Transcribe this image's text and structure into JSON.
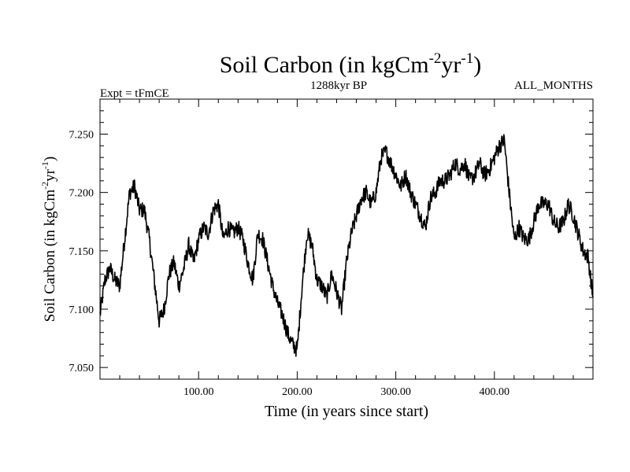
{
  "chart_data": {
    "type": "line",
    "title_main": "Soil Carbon (in kgCm",
    "title_exp1": "-2",
    "title_mid": "yr",
    "title_exp2": "-1",
    "title_end": ")",
    "subtitle_left": "Expt = tFmCE",
    "subtitle_center": "1288kyr BP",
    "subtitle_right": "ALL_MONTHS",
    "xlabel": "Time (in years since start)",
    "ylabel_main": "Soil Carbon (in kgCm",
    "ylabel_exp1": "-2",
    "ylabel_mid": "yr",
    "ylabel_exp2": "-1",
    "ylabel_end": ")",
    "xlim": [
      0,
      500
    ],
    "ylim": [
      7.04,
      7.28
    ],
    "x_ticks": [
      {
        "value": 100,
        "label": "100.00"
      },
      {
        "value": 200,
        "label": "200.00"
      },
      {
        "value": 300,
        "label": "300.00"
      },
      {
        "value": 400,
        "label": "400.00"
      }
    ],
    "y_ticks": [
      {
        "value": 7.05,
        "label": "7.050"
      },
      {
        "value": 7.1,
        "label": "7.100"
      },
      {
        "value": 7.15,
        "label": "7.150"
      },
      {
        "value": 7.2,
        "label": "7.200"
      },
      {
        "value": 7.25,
        "label": "7.250"
      }
    ],
    "noise_amplitude": 0.007,
    "series": [
      {
        "name": "Soil Carbon",
        "color": "#000000",
        "x": [
          0,
          5,
          10,
          15,
          20,
          25,
          30,
          35,
          40,
          45,
          50,
          55,
          60,
          65,
          70,
          75,
          80,
          85,
          90,
          95,
          100,
          105,
          110,
          115,
          120,
          125,
          130,
          135,
          140,
          145,
          150,
          155,
          160,
          165,
          170,
          175,
          180,
          185,
          190,
          195,
          200,
          205,
          210,
          215,
          220,
          225,
          230,
          235,
          240,
          245,
          250,
          255,
          260,
          265,
          270,
          275,
          280,
          285,
          290,
          295,
          300,
          305,
          310,
          315,
          320,
          325,
          330,
          335,
          340,
          345,
          350,
          355,
          360,
          365,
          370,
          375,
          380,
          385,
          390,
          395,
          400,
          405,
          410,
          415,
          420,
          425,
          430,
          435,
          440,
          445,
          450,
          455,
          460,
          465,
          470,
          475,
          480,
          485,
          490,
          495,
          500
        ],
        "values": [
          7.095,
          7.125,
          7.135,
          7.125,
          7.12,
          7.16,
          7.2,
          7.205,
          7.185,
          7.185,
          7.16,
          7.125,
          7.09,
          7.1,
          7.13,
          7.14,
          7.12,
          7.135,
          7.155,
          7.14,
          7.16,
          7.17,
          7.165,
          7.185,
          7.19,
          7.16,
          7.17,
          7.165,
          7.17,
          7.16,
          7.14,
          7.125,
          7.165,
          7.16,
          7.14,
          7.12,
          7.105,
          7.095,
          7.08,
          7.07,
          7.065,
          7.12,
          7.165,
          7.155,
          7.125,
          7.12,
          7.11,
          7.13,
          7.115,
          7.1,
          7.14,
          7.165,
          7.18,
          7.195,
          7.2,
          7.19,
          7.2,
          7.23,
          7.235,
          7.225,
          7.215,
          7.205,
          7.215,
          7.2,
          7.19,
          7.18,
          7.17,
          7.195,
          7.2,
          7.21,
          7.21,
          7.215,
          7.225,
          7.22,
          7.225,
          7.21,
          7.215,
          7.225,
          7.215,
          7.22,
          7.23,
          7.24,
          7.245,
          7.2,
          7.16,
          7.17,
          7.16,
          7.16,
          7.175,
          7.19,
          7.19,
          7.19,
          7.175,
          7.17,
          7.175,
          7.19,
          7.18,
          7.165,
          7.15,
          7.145,
          7.11
        ]
      }
    ]
  }
}
